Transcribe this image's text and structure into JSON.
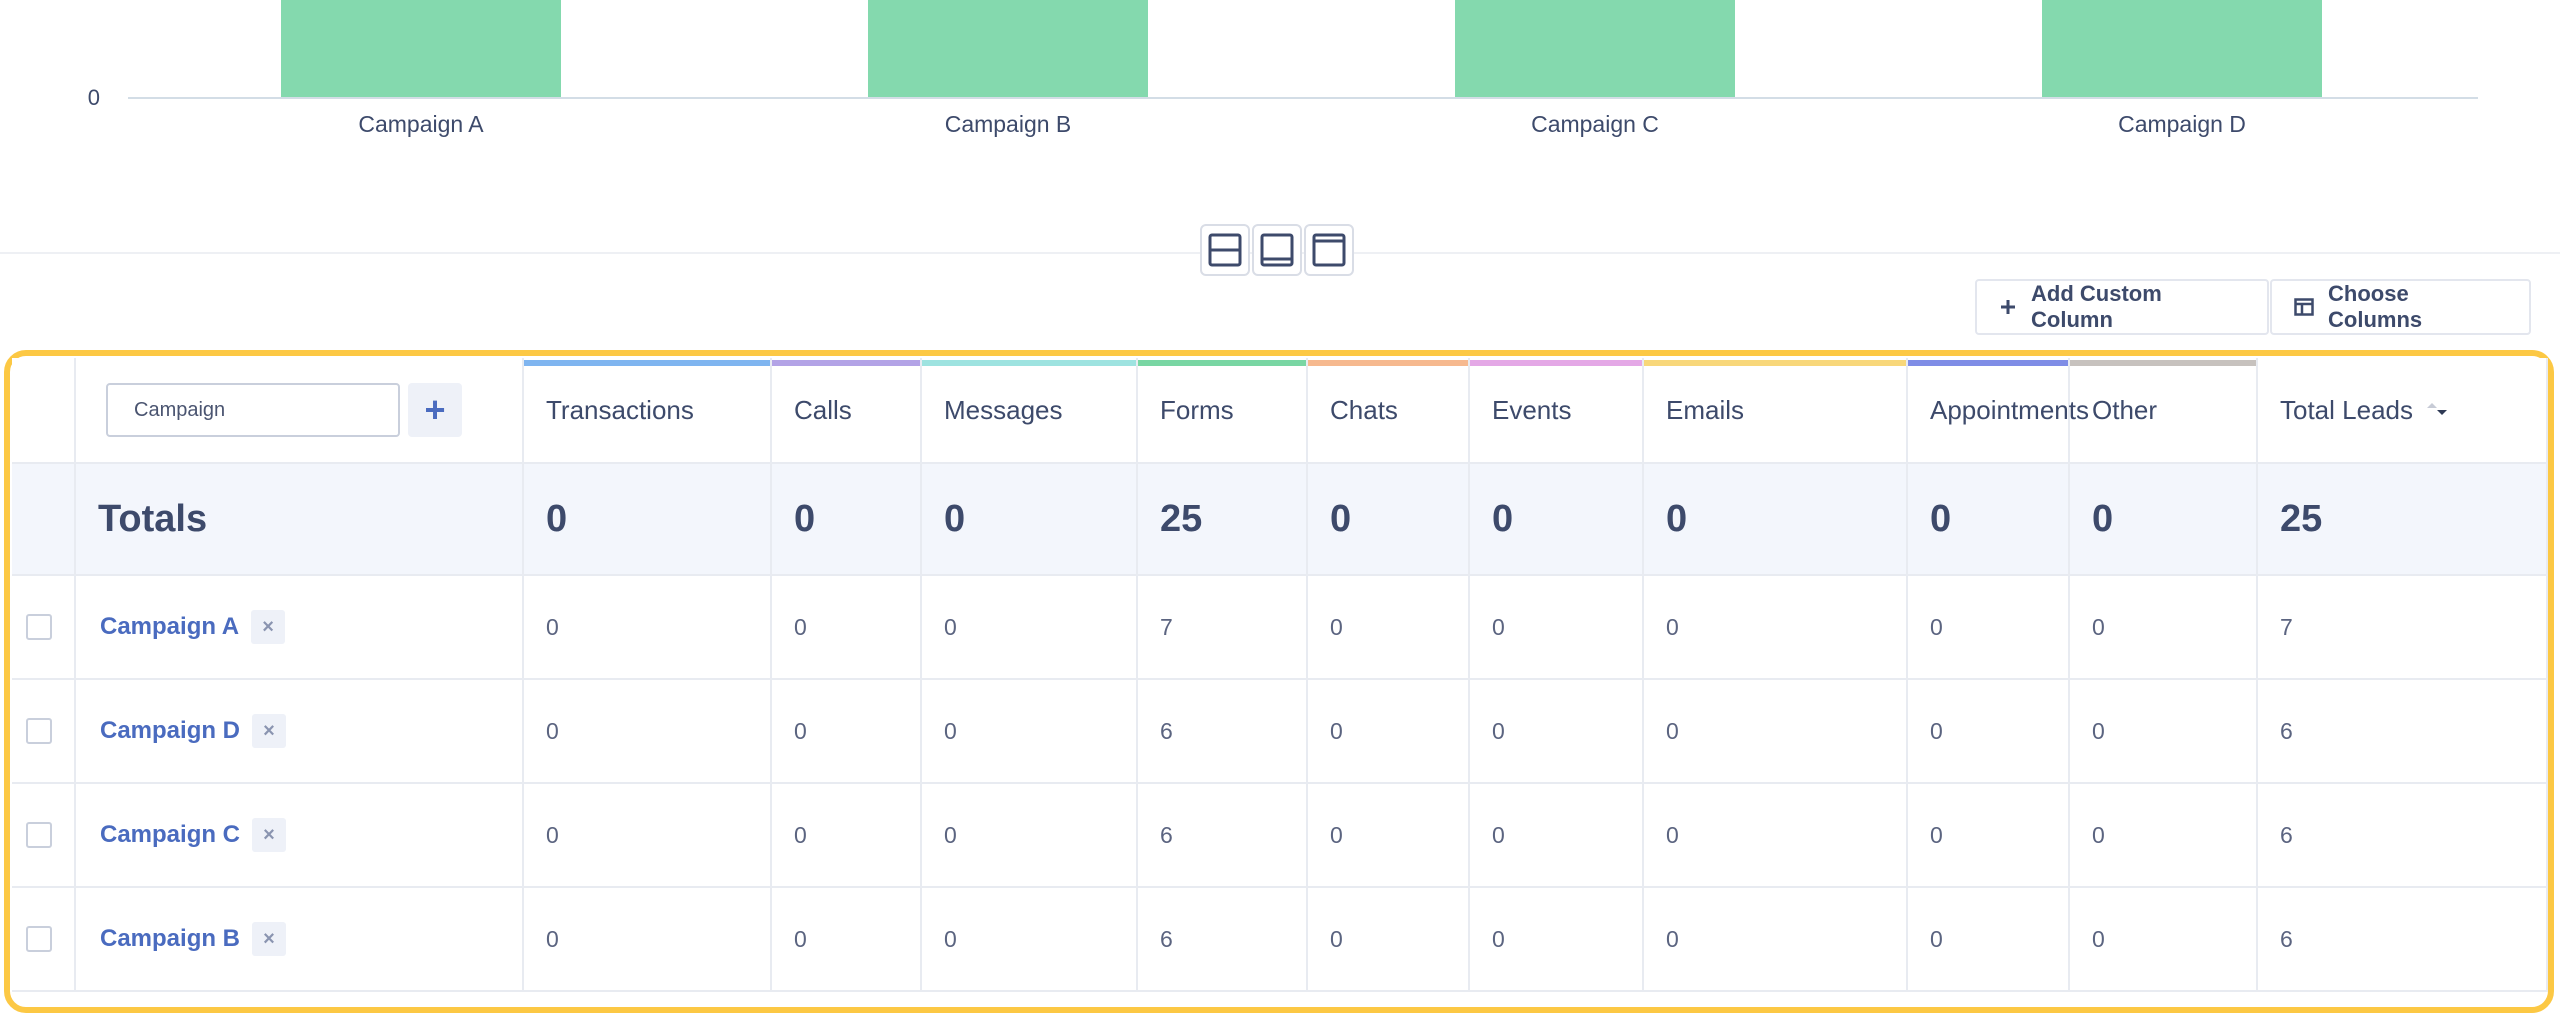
{
  "chart_data": {
    "type": "bar",
    "categories": [
      "Campaign A",
      "Campaign B",
      "Campaign C",
      "Campaign D"
    ],
    "values": [
      7,
      6,
      6,
      6
    ],
    "ytick_zero": "0",
    "bar_color": "#84d9ae"
  },
  "layout_toggles": [
    "split-view-icon",
    "bottom-panel-icon",
    "top-panel-icon"
  ],
  "toolbar": {
    "add_custom_column": "Add Custom Column",
    "choose_columns": "Choose Columns"
  },
  "table": {
    "search_value": "Campaign",
    "add_label": "+",
    "columns": [
      {
        "label": "Transactions",
        "color": "#7fb5f0"
      },
      {
        "label": "Calls",
        "color": "#b3a3e6"
      },
      {
        "label": "Messages",
        "color": "#9ee3e0"
      },
      {
        "label": "Forms",
        "color": "#79d6a3"
      },
      {
        "label": "Chats",
        "color": "#f6b98f"
      },
      {
        "label": "Events",
        "color": "#e4a8e6"
      },
      {
        "label": "Emails",
        "color": "#f8d77a"
      },
      {
        "label": "Appointments",
        "color": "#7f8de6"
      },
      {
        "label": "Other",
        "color": "#c7c2be"
      },
      {
        "label": "Total Leads",
        "color": ""
      }
    ],
    "totals_label": "Totals",
    "totals": [
      "0",
      "0",
      "0",
      "25",
      "0",
      "0",
      "0",
      "0",
      "0",
      "25"
    ],
    "rows": [
      {
        "name": "Campaign A",
        "values": [
          "0",
          "0",
          "0",
          "7",
          "0",
          "0",
          "0",
          "0",
          "0",
          "7"
        ]
      },
      {
        "name": "Campaign D",
        "values": [
          "0",
          "0",
          "0",
          "6",
          "0",
          "0",
          "0",
          "0",
          "0",
          "6"
        ]
      },
      {
        "name": "Campaign C",
        "values": [
          "0",
          "0",
          "0",
          "6",
          "0",
          "0",
          "0",
          "0",
          "0",
          "6"
        ]
      },
      {
        "name": "Campaign B",
        "values": [
          "0",
          "0",
          "0",
          "6",
          "0",
          "0",
          "0",
          "0",
          "0",
          "6"
        ]
      }
    ],
    "remove_symbol": "×"
  }
}
